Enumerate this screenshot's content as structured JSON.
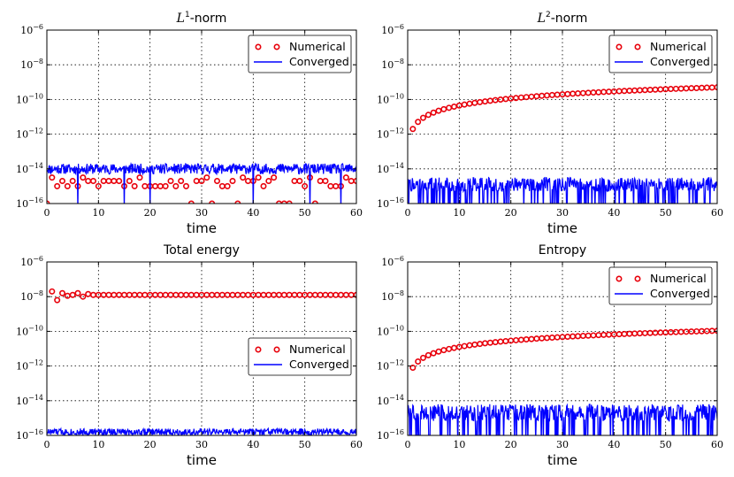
{
  "chart_data": [
    {
      "type": "line",
      "title": "L1-norm",
      "title_parts": {
        "symbol": "L",
        "sup": "1",
        "suffix": "-norm"
      },
      "xlabel": "time",
      "ylabel": "",
      "xlim": [
        0,
        60
      ],
      "ylim_log10": [
        -16,
        -6
      ],
      "xticks": [
        0,
        10,
        20,
        30,
        40,
        50,
        60
      ],
      "yticks_log10": [
        -16,
        -14,
        -12,
        -10,
        -8,
        -6
      ],
      "ytick_labels": [
        "10",
        "10",
        "10",
        "10",
        "10",
        "10"
      ],
      "ytick_exponents": [
        "−16",
        "−14",
        "−12",
        "−10",
        "−8",
        "−6"
      ],
      "grid": true,
      "legend": {
        "position": "top-right",
        "entries": [
          "Numerical",
          "Converged"
        ]
      },
      "series": [
        {
          "name": "Numerical",
          "style": "markers",
          "color": "#e8000b",
          "x": [
            0,
            1,
            2,
            3,
            4,
            5,
            6,
            7,
            8,
            9,
            10,
            11,
            12,
            13,
            14,
            15,
            16,
            17,
            18,
            19,
            20,
            21,
            22,
            23,
            24,
            25,
            26,
            27,
            28,
            29,
            30,
            31,
            32,
            33,
            34,
            35,
            36,
            37,
            38,
            39,
            40,
            41,
            42,
            43,
            44,
            45,
            46,
            47,
            48,
            49,
            50,
            51,
            52,
            53,
            54,
            55,
            56,
            57,
            58,
            59,
            60
          ],
          "log10_y": [
            -16,
            -14.5,
            -15,
            -14.7,
            -15,
            -14.7,
            -15,
            -14.5,
            -14.7,
            -14.7,
            -15,
            -14.7,
            -14.7,
            -14.7,
            -14.7,
            -15,
            -14.7,
            -15,
            -14.5,
            -15,
            -15,
            -15,
            -15,
            -15,
            -14.7,
            -15,
            -14.7,
            -15,
            -16,
            -14.7,
            -14.7,
            -14.5,
            -16,
            -14.7,
            -15,
            -15,
            -14.7,
            -16,
            -14.5,
            -14.7,
            -14.7,
            -14.5,
            -15,
            -14.7,
            -14.5,
            -16,
            -16,
            -16,
            -14.7,
            -14.7,
            -15,
            -14.5,
            -16,
            -14.7,
            -14.7,
            -15,
            -15,
            -15,
            -14.5,
            -14.7,
            -14.7
          ]
        },
        {
          "name": "Converged",
          "style": "line",
          "color": "#0000ff",
          "noise_band_log10": [
            -14.3,
            -13.7
          ],
          "drops_to_bottom_at": [
            6,
            15,
            20,
            40,
            51,
            57
          ],
          "seed": 11
        }
      ]
    },
    {
      "type": "line",
      "title": "L2-norm",
      "title_parts": {
        "symbol": "L",
        "sup": "2",
        "suffix": "-norm"
      },
      "xlabel": "time",
      "ylabel": "",
      "xlim": [
        0,
        60
      ],
      "ylim_log10": [
        -16,
        -6
      ],
      "xticks": [
        0,
        10,
        20,
        30,
        40,
        50,
        60
      ],
      "yticks_log10": [
        -16,
        -14,
        -12,
        -10,
        -8,
        -6
      ],
      "ytick_labels": [
        "10",
        "10",
        "10",
        "10",
        "10",
        "10"
      ],
      "ytick_exponents": [
        "−16",
        "−14",
        "−12",
        "−10",
        "−8",
        "−6"
      ],
      "grid": true,
      "legend": {
        "position": "top-right",
        "entries": [
          "Numerical",
          "Converged"
        ]
      },
      "series": [
        {
          "name": "Numerical",
          "style": "markers",
          "color": "#e8000b",
          "log_curve": {
            "a": -11.7,
            "b": 1.35
          },
          "x_start": 1,
          "x_end": 60,
          "step": 1
        },
        {
          "name": "Converged",
          "style": "line",
          "color": "#0000ff",
          "noise_band_log10": [
            -15.3,
            -14.5
          ],
          "dip_probability": 0.15,
          "seed": 22
        }
      ]
    },
    {
      "type": "line",
      "title": "Total energy",
      "xlabel": "time",
      "ylabel": "",
      "xlim": [
        0,
        60
      ],
      "ylim_log10": [
        -16,
        -6
      ],
      "xticks": [
        0,
        10,
        20,
        30,
        40,
        50,
        60
      ],
      "yticks_log10": [
        -16,
        -14,
        -12,
        -10,
        -8,
        -6
      ],
      "ytick_labels": [
        "10",
        "10",
        "10",
        "10",
        "10",
        "10"
      ],
      "ytick_exponents": [
        "−16",
        "−14",
        "−12",
        "−10",
        "−8",
        "−6"
      ],
      "grid": true,
      "legend": {
        "position": "center-right",
        "entries": [
          "Numerical",
          "Converged"
        ]
      },
      "series": [
        {
          "name": "Numerical",
          "style": "markers",
          "color": "#e8000b",
          "x": [
            1,
            2,
            3,
            4,
            5,
            6,
            7,
            8,
            9,
            10
          ],
          "log10_y": [
            -7.7,
            -8.2,
            -7.8,
            -7.95,
            -7.9,
            -7.8,
            -8.0,
            -7.85,
            -7.9,
            -7.9
          ],
          "tail_log10": -7.9,
          "tail_from": 11,
          "x_end": 60
        },
        {
          "name": "Converged",
          "style": "line",
          "color": "#0000ff",
          "noise_band_log10": [
            -16,
            -15.6
          ],
          "seed": 33
        }
      ]
    },
    {
      "type": "line",
      "title": "Entropy",
      "xlabel": "time",
      "ylabel": "",
      "xlim": [
        0,
        60
      ],
      "ylim_log10": [
        -16,
        -6
      ],
      "xticks": [
        0,
        10,
        20,
        30,
        40,
        50,
        60
      ],
      "yticks_log10": [
        -16,
        -14,
        -12,
        -10,
        -8,
        -6
      ],
      "ytick_labels": [
        "10",
        "10",
        "10",
        "10",
        "10",
        "10"
      ],
      "ytick_exponents": [
        "−16",
        "−14",
        "−12",
        "−10",
        "−8",
        "−6"
      ],
      "grid": true,
      "legend": {
        "position": "top-right",
        "entries": [
          "Numerical",
          "Converged"
        ]
      },
      "series": [
        {
          "name": "Numerical",
          "style": "markers",
          "color": "#e8000b",
          "log_curve": {
            "a": -12.1,
            "b": 1.2
          },
          "x_start": 1,
          "x_end": 60,
          "step": 1
        },
        {
          "name": "Converged",
          "style": "line",
          "color": "#0000ff",
          "noise_band_log10": [
            -15.2,
            -14.2
          ],
          "dip_probability": 0.18,
          "seed": 44
        }
      ]
    }
  ]
}
